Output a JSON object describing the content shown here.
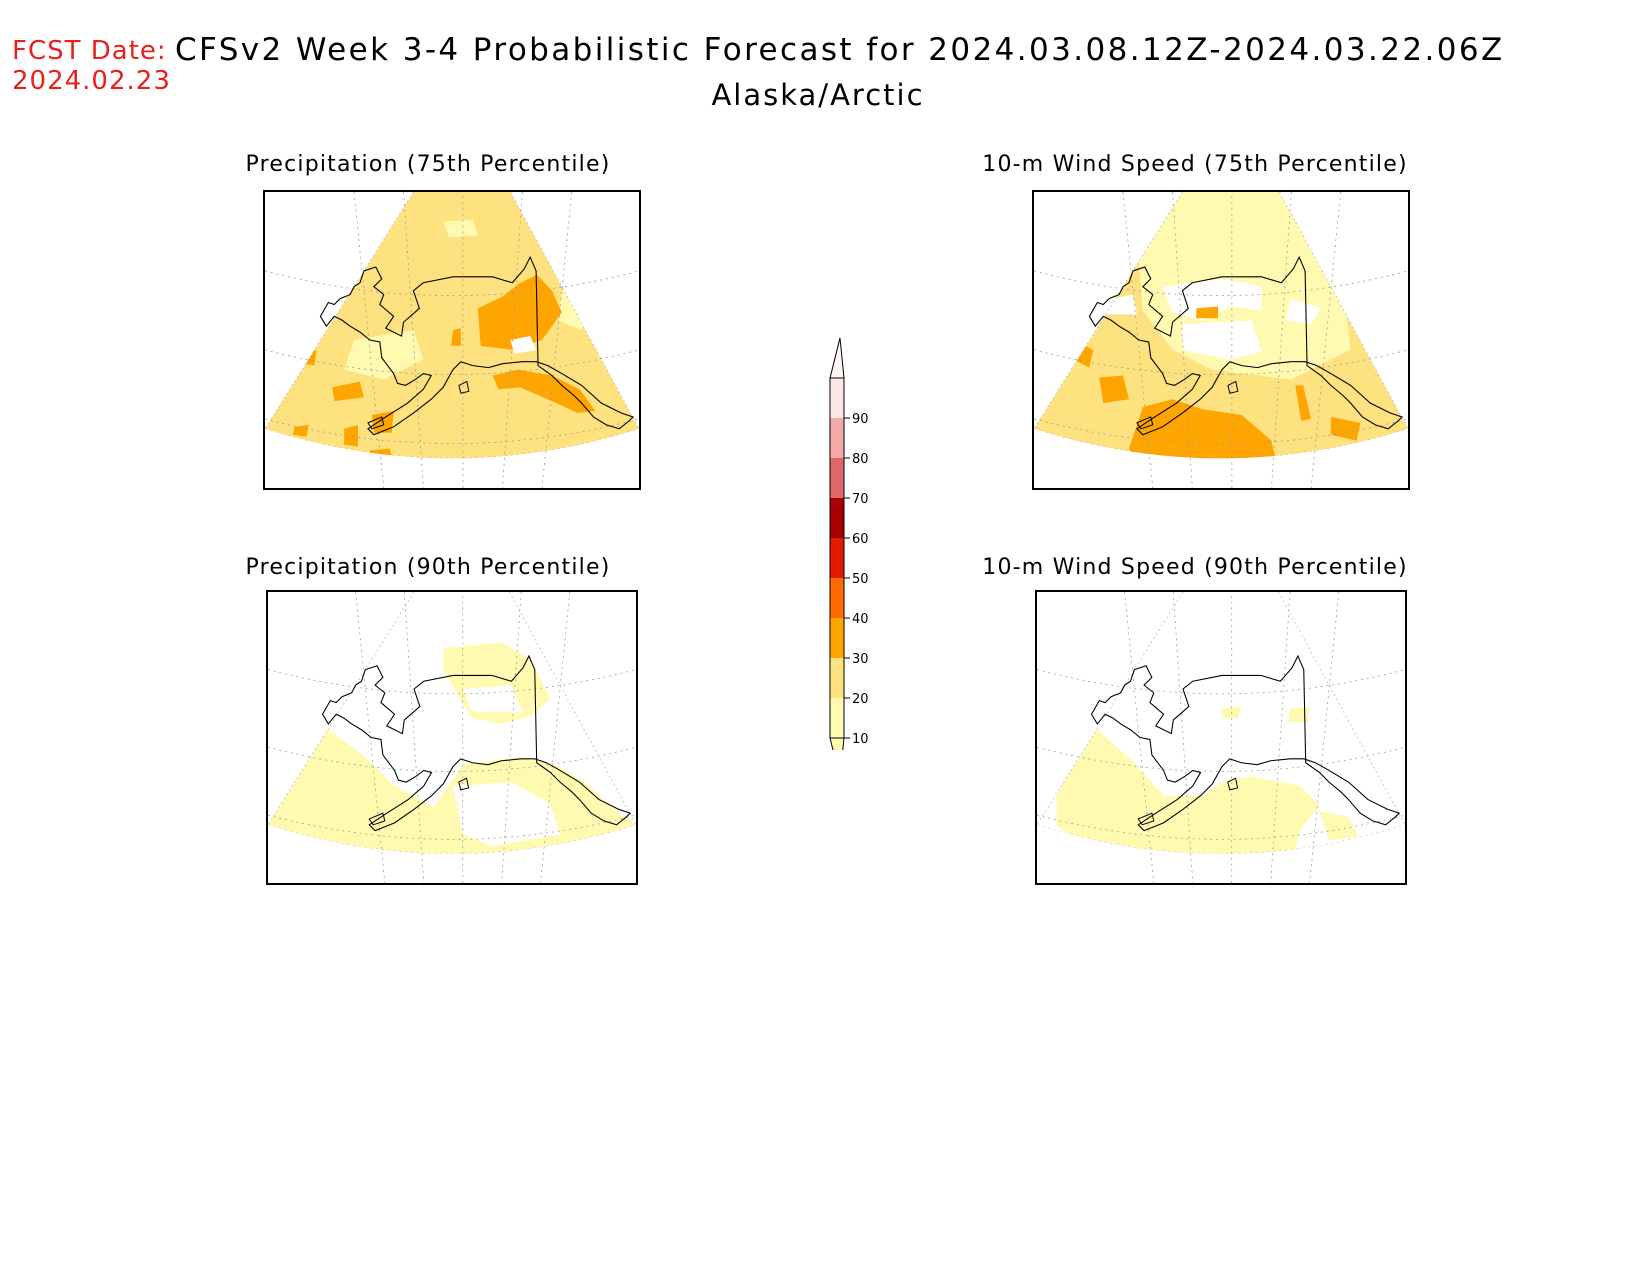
{
  "header": {
    "fcst_label": "FCST Date:",
    "fcst_date": "2024.02.23",
    "title": "CFSv2 Week 3-4 Probabilistic Forecast for 2024.03.08.12Z-2024.03.22.06Z",
    "region": "Alaska/Arctic"
  },
  "panels": [
    {
      "id": "precip-75",
      "title": "Precipitation (75th Percentile)",
      "level": "high"
    },
    {
      "id": "wind-75",
      "title": "10-m Wind Speed (75th Percentile)",
      "level": "mid"
    },
    {
      "id": "precip-90",
      "title": "Precipitation (90th Percentile)",
      "level": "low"
    },
    {
      "id": "wind-90",
      "title": "10-m Wind Speed (90th Percentile)",
      "level": "verylow"
    }
  ],
  "colorbar": {
    "labels": [
      "10",
      "20",
      "30",
      "40",
      "50",
      "60",
      "70",
      "80",
      "90"
    ],
    "colors": [
      "#fffab0",
      "#ffe280",
      "#ffa500",
      "#ff6a00",
      "#e31a00",
      "#a80000",
      "#e06868",
      "#f4a8a8",
      "#fde8e8"
    ]
  },
  "colors": {
    "c10": "#fffab0",
    "c20": "#ffe280",
    "c30": "#ffa500",
    "fcst_red": "#e8201c"
  }
}
